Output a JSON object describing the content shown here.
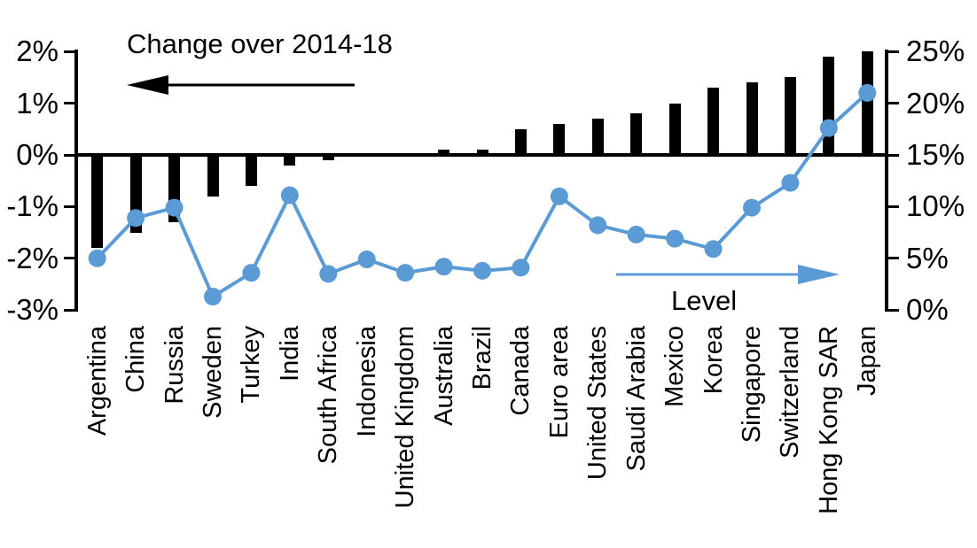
{
  "chart_data": {
    "type": "combo-bar-line",
    "title": "",
    "categories": [
      "Argentina",
      "China",
      "Russia",
      "Sweden",
      "Turkey",
      "India",
      "South Africa",
      "Indonesia",
      "United Kingdom",
      "Australia",
      "Brazil",
      "Canada",
      "Euro area",
      "United States",
      "Saudi Arabia",
      "Mexico",
      "Korea",
      "Singapore",
      "Switzerland",
      "Hong Kong SAR",
      "Japan"
    ],
    "series": [
      {
        "name": "Change over 2014-18",
        "type": "bar",
        "axis": "left",
        "color": "#000000",
        "values": [
          -1.8,
          -1.5,
          -1.3,
          -0.8,
          -0.6,
          -0.2,
          -0.1,
          0,
          0,
          0.1,
          0.1,
          0.5,
          0.6,
          0.7,
          0.8,
          1.0,
          1.3,
          1.4,
          1.5,
          1.9,
          2.0
        ]
      },
      {
        "name": "Level",
        "type": "line",
        "axis": "right",
        "color": "#5B9BD5",
        "values": [
          5.0,
          8.9,
          9.9,
          1.3,
          3.6,
          11.1,
          3.5,
          4.9,
          3.6,
          4.2,
          3.8,
          4.1,
          11.0,
          8.2,
          7.3,
          6.9,
          5.9,
          9.9,
          12.3,
          17.6,
          21.0
        ]
      }
    ],
    "left_axis": {
      "min": -3,
      "max": 2,
      "tick_values": [
        2,
        1,
        0,
        -1,
        -2,
        -3
      ],
      "tick_labels": [
        "2%",
        "1%",
        "0%",
        "-1%",
        "-2%",
        "-3%"
      ]
    },
    "right_axis": {
      "min": 0,
      "max": 25,
      "tick_values": [
        25,
        20,
        15,
        10,
        5,
        0
      ],
      "tick_labels": [
        "25%",
        "20%",
        "15%",
        "10%",
        "5%",
        "0%"
      ]
    },
    "annotations": [
      {
        "text": "Change over 2014-18",
        "arrow_direction": "left",
        "arrow_color": "#000000",
        "text_color": "#000000"
      },
      {
        "text": "Level",
        "arrow_direction": "right",
        "arrow_color": "#5B9BD5",
        "text_color": "#000000"
      }
    ],
    "grid": false,
    "background": "#FFFFFF"
  }
}
